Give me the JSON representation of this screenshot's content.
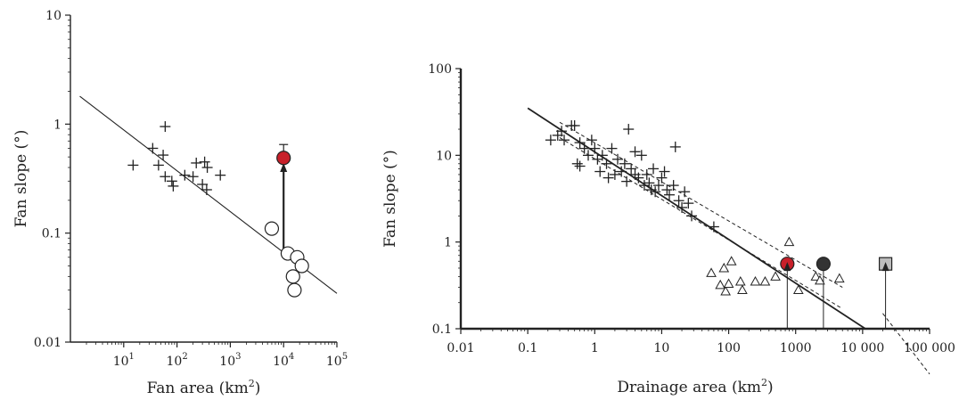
{
  "colors": {
    "ink": "#222222",
    "red_marker": "#c8202a",
    "dark_marker": "#333333",
    "square_marker": "#bdbdbd"
  },
  "chart_data": [
    {
      "type": "scatter",
      "xscale": "log",
      "yscale": "log",
      "xlabel": "Fan area (km²)",
      "ylabel": "Fan slope (°)",
      "xlim": [
        1,
        100000
      ],
      "ylim": [
        0.01,
        10
      ],
      "xticks": [
        {
          "value": 10,
          "base": "10",
          "exp": "1"
        },
        {
          "value": 100,
          "base": "10",
          "exp": "2"
        },
        {
          "value": 1000,
          "base": "10",
          "exp": "3"
        },
        {
          "value": 10000,
          "base": "10",
          "exp": "4"
        },
        {
          "value": 100000,
          "base": "10",
          "exp": "5"
        }
      ],
      "yticks": [
        {
          "value": 0.01,
          "label": "0.01"
        },
        {
          "value": 0.1,
          "label": "0.1"
        },
        {
          "value": 1,
          "label": "1"
        },
        {
          "value": 10,
          "label": "10"
        }
      ],
      "series": [
        {
          "marker": "plus",
          "points": [
            [
              15,
              0.42
            ],
            [
              35,
              0.6
            ],
            [
              45,
              0.42
            ],
            [
              55,
              0.52
            ],
            [
              60,
              0.95
            ],
            [
              60,
              0.33
            ],
            [
              80,
              0.3
            ],
            [
              85,
              0.27
            ],
            [
              140,
              0.34
            ],
            [
              200,
              0.33
            ],
            [
              230,
              0.44
            ],
            [
              300,
              0.28
            ],
            [
              330,
              0.45
            ],
            [
              360,
              0.25
            ],
            [
              370,
              0.4
            ],
            [
              650,
              0.34
            ]
          ]
        },
        {
          "marker": "open-circle",
          "points": [
            [
              6000,
              0.11
            ],
            [
              12000,
              0.065
            ],
            [
              15000,
              0.04
            ],
            [
              16000,
              0.03
            ],
            [
              18000,
              0.06
            ],
            [
              22000,
              0.05
            ]
          ]
        },
        {
          "marker": "filled-circle",
          "color": "#c8202a",
          "points": [
            [
              10000,
              0.49
            ]
          ]
        }
      ],
      "regression_line": {
        "from": [
          1.5,
          1.8
        ],
        "to": [
          100000,
          0.028
        ]
      },
      "arrow": {
        "x": 10000,
        "from": 0.07,
        "to": 0.44
      },
      "error_bar": {
        "x": 10000,
        "low": 0.44,
        "high": 0.65
      }
    },
    {
      "type": "scatter",
      "xscale": "log",
      "yscale": "log",
      "xlabel": "Drainage area (km²)",
      "ylabel": "Fan slope (°)",
      "xlim": [
        0.01,
        100000
      ],
      "ylim": [
        0.1,
        100
      ],
      "xticks": [
        {
          "value": 0.01,
          "label": "0.01"
        },
        {
          "value": 0.1,
          "label": "0.1"
        },
        {
          "value": 1,
          "label": "1"
        },
        {
          "value": 10,
          "label": "10"
        },
        {
          "value": 100,
          "label": "100"
        },
        {
          "value": 1000,
          "label": "1000"
        },
        {
          "value": 10000,
          "label": "10 000"
        },
        {
          "value": 100000,
          "label": "100 000"
        }
      ],
      "yticks": [
        {
          "value": 0.1,
          "label": "0.1"
        },
        {
          "value": 1,
          "label": "1"
        },
        {
          "value": 10,
          "label": "10"
        },
        {
          "value": 100,
          "label": "100"
        }
      ],
      "series": [
        {
          "marker": "plus",
          "points": [
            [
              0.22,
              15
            ],
            [
              0.28,
              17
            ],
            [
              0.32,
              19
            ],
            [
              0.35,
              15
            ],
            [
              0.45,
              22
            ],
            [
              0.5,
              22
            ],
            [
              0.55,
              8
            ],
            [
              0.6,
              7.5
            ],
            [
              0.6,
              14
            ],
            [
              0.7,
              12
            ],
            [
              0.8,
              10
            ],
            [
              0.9,
              15
            ],
            [
              1.0,
              12
            ],
            [
              1.1,
              9
            ],
            [
              1.2,
              6.5
            ],
            [
              1.3,
              10
            ],
            [
              1.5,
              8
            ],
            [
              1.6,
              5.5
            ],
            [
              1.8,
              12
            ],
            [
              2.0,
              6
            ],
            [
              2.2,
              9
            ],
            [
              2.5,
              6.5
            ],
            [
              2.8,
              8
            ],
            [
              3.0,
              5
            ],
            [
              3.2,
              20
            ],
            [
              3.5,
              7
            ],
            [
              4.0,
              6
            ],
            [
              4.0,
              11
            ],
            [
              4.5,
              5.5
            ],
            [
              5.0,
              10
            ],
            [
              5.5,
              4.5
            ],
            [
              6.0,
              6
            ],
            [
              6.5,
              4.8
            ],
            [
              7.0,
              4
            ],
            [
              7.5,
              7
            ],
            [
              8.0,
              3.8
            ],
            [
              9.0,
              4.5
            ],
            [
              10,
              5.5
            ],
            [
              11,
              6.5
            ],
            [
              12,
              4
            ],
            [
              13,
              3.5
            ],
            [
              15,
              4.5
            ],
            [
              16,
              12.5
            ],
            [
              18,
              3
            ],
            [
              20,
              2.5
            ],
            [
              22,
              3.8
            ],
            [
              25,
              2.8
            ],
            [
              28,
              2.0
            ],
            [
              60,
              1.5
            ]
          ]
        },
        {
          "marker": "open-triangle",
          "points": [
            [
              55,
              0.44
            ],
            [
              75,
              0.32
            ],
            [
              85,
              0.5
            ],
            [
              90,
              0.27
            ],
            [
              100,
              0.33
            ],
            [
              110,
              0.6
            ],
            [
              150,
              0.35
            ],
            [
              160,
              0.28
            ],
            [
              250,
              0.35
            ],
            [
              350,
              0.35
            ],
            [
              500,
              0.4
            ],
            [
              800,
              1.0
            ],
            [
              1100,
              0.28
            ],
            [
              2000,
              0.4
            ],
            [
              2300,
              0.36
            ],
            [
              4500,
              0.38
            ]
          ]
        },
        {
          "marker": "filled-circle",
          "color": "#c8202a",
          "points": [
            [
              750,
              0.56
            ]
          ]
        },
        {
          "marker": "filled-circle",
          "color": "#333333",
          "points": [
            [
              2600,
              0.56
            ]
          ]
        },
        {
          "marker": "filled-square",
          "color": "#bdbdbd",
          "points": [
            [
              22000,
              0.56
            ]
          ]
        }
      ],
      "regression_line": {
        "from": [
          0.1,
          35
        ],
        "to": [
          11000,
          0.1
        ]
      },
      "confidence_band": [
        {
          "from": [
            0.3,
            24
          ],
          "to": [
            5000,
            0.3
          ]
        },
        {
          "from": [
            0.3,
            16
          ],
          "to": [
            5000,
            0.17
          ]
        }
      ],
      "extra_dashed_line": {
        "from": [
          20000,
          0.15
        ],
        "to": [
          100000,
          0.03
        ]
      },
      "droplines": [
        {
          "x": 750,
          "from": 0.1,
          "to": 0.56,
          "arrow": true
        },
        {
          "x": 2600,
          "from": 0.1,
          "to": 0.56,
          "arrow": false
        },
        {
          "x": 22000,
          "from": 0.1,
          "to": 0.56,
          "arrow": true
        }
      ]
    }
  ]
}
